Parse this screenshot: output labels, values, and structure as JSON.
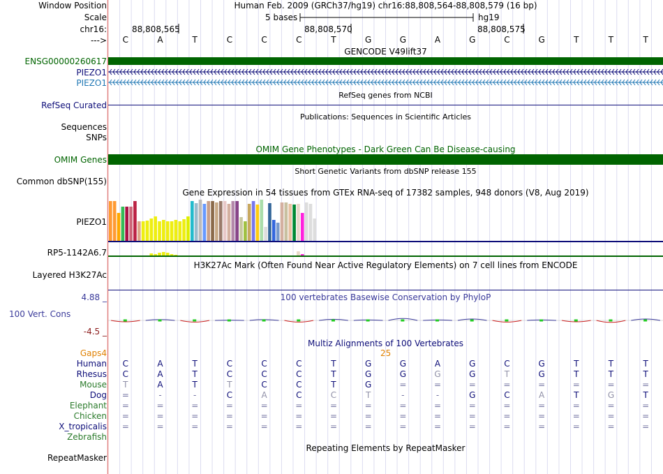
{
  "header": {
    "window_position_label": "Window Position",
    "assembly_text": "Human Feb. 2009 (GRCh37/hg19)   chr16:88,808,564-88,808,579 (16 bp)",
    "scale_label": "Scale",
    "scale_bases": "5 bases",
    "scale_db": "hg19",
    "chrom_label": "chr16:",
    "coord_ticks": [
      "88,808,565",
      "88,808,570",
      "88,808,575"
    ],
    "strand_label": "--->",
    "bases": [
      "C",
      "A",
      "T",
      "C",
      "C",
      "C",
      "T",
      "G",
      "G",
      "A",
      "G",
      "C",
      "G",
      "T",
      "T",
      "T"
    ]
  },
  "gencode": {
    "title": "GENCODE V49lift37",
    "genes": [
      {
        "name": "ENSG00000260617",
        "color": "#006400"
      },
      {
        "name": "PIEZO1",
        "color": "#0c0c78"
      },
      {
        "name": "PIEZO1",
        "color": "#1f77b4"
      }
    ]
  },
  "refseq": {
    "title": "RefSeq genes from NCBI",
    "label": "RefSeq Curated",
    "color": "#0c0c78"
  },
  "publications": {
    "title": "Publications: Sequences in Scientific Articles",
    "labels": [
      "Sequences",
      "SNPs"
    ]
  },
  "omim": {
    "title": "OMIM Gene Phenotypes - Dark Green Can Be Disease-causing",
    "label": "OMIM Genes",
    "color": "#006400"
  },
  "dbsnp": {
    "title": "Short Genetic Variants from dbSNP release 155",
    "label": "Common dbSNP(155)"
  },
  "gtex": {
    "title": "Gene Expression in 54 tissues from GTEx RNA-seq of 17382 samples, 948 donors (V8, Aug 2019)",
    "rows": [
      {
        "label": "PIEZO1",
        "bar_heights": [
          57,
          57,
          40,
          49,
          49,
          49,
          57,
          28,
          28,
          29,
          32,
          35,
          28,
          30,
          28,
          28,
          30,
          28,
          31,
          35,
          57,
          54,
          59,
          53,
          57,
          57,
          55,
          57,
          57,
          53,
          57,
          57,
          34,
          28,
          53,
          57,
          52,
          60,
          20,
          54,
          30,
          26,
          55,
          55,
          53,
          52,
          53,
          40,
          55,
          53,
          32
        ]
      },
      {
        "label": "RP5-1142A6.7",
        "bar_heights": [
          0,
          0,
          0,
          0,
          0,
          0,
          0,
          0,
          0,
          0,
          3,
          2,
          4,
          5,
          4,
          2,
          1,
          0,
          0,
          0,
          0,
          0,
          0,
          0,
          0,
          0,
          0,
          0,
          0,
          0,
          0,
          0,
          0,
          0,
          0,
          0,
          0,
          0,
          0,
          0,
          0,
          0,
          0,
          0,
          0,
          0,
          6,
          2,
          0,
          0,
          0
        ]
      }
    ],
    "colors": [
      "#ff9a33",
      "#ff9a33",
      "#ffa800",
      "#33bb55",
      "#aa1144",
      "#cc6677",
      "#bb2244",
      "#dda688",
      "#eeee11",
      "#eeee11",
      "#eeee11",
      "#eeee11",
      "#eeee11",
      "#eeee11",
      "#eeee11",
      "#eeee11",
      "#eeee11",
      "#eeee11",
      "#eeee11",
      "#ddee00",
      "#22bbcc",
      "#99bbcc",
      "#bbbbbb",
      "#6699ff",
      "#c8a08a",
      "#8a6a4a",
      "#c8aa88",
      "#9a7a6a",
      "#e8c8c8",
      "#d4b0a0",
      "#b488aa",
      "#884488",
      "#c8c8a0",
      "#a0c040",
      "#c8a860",
      "#7777ee",
      "#ffcc11",
      "#aaddaa",
      "#dddddd",
      "#336699",
      "#3366dd",
      "#7799cc",
      "#d4b0a0",
      "#c8c0a0",
      "#e8c0a0",
      "#008833",
      "#e8d8c8",
      "#ff22dd",
      "#dddddd",
      "#dddddd",
      "#dddddd"
    ]
  },
  "h3k27ac": {
    "title": "H3K27Ac Mark (Often Found Near Active Regulatory Elements) on 7 cell lines from ENCODE",
    "label": "Layered H3K27Ac"
  },
  "cons": {
    "title": "100 vertebrates Basewise Conservation by PhyloP",
    "label": "100 Vert. Cons",
    "ymax": "4.88 _",
    "ymin": "-4.5 _",
    "values": [
      -0.5,
      0.3,
      -0.6,
      0.1,
      0.3,
      -0.6,
      0.4,
      0.2,
      0.7,
      0.2,
      0.5,
      -0.6,
      0.2,
      -0.5,
      -0.7,
      0.5
    ]
  },
  "multiz": {
    "title": "Multiz Alignments of 100 Vertebrates",
    "gaps_label": "Gaps4",
    "gaps_count": "25",
    "species": [
      {
        "name": "Human",
        "color": "#0c0c78",
        "bases": [
          "C",
          "A",
          "T",
          "C",
          "C",
          "C",
          "T",
          "G",
          "G",
          "A",
          "G",
          "C",
          "G",
          "T",
          "T",
          "T"
        ]
      },
      {
        "name": "Rhesus",
        "color": "#0c0c78",
        "bases": [
          "C",
          "A",
          "T",
          "C",
          "C",
          "C",
          "T",
          "G",
          "G",
          "G",
          "G",
          "T",
          "G",
          "T",
          "T",
          "T"
        ]
      },
      {
        "name": "Mouse",
        "color": "#2a7a2a",
        "bases": [
          "T",
          "A",
          "T",
          "T",
          "C",
          "C",
          "T",
          "G",
          "=",
          "=",
          "=",
          "=",
          "=",
          "=",
          "=",
          "="
        ]
      },
      {
        "name": "Dog",
        "color": "#0c0c78",
        "bases": [
          "=",
          "-",
          "-",
          "C",
          "A",
          "C",
          "C",
          "T",
          "-",
          "-",
          "G",
          "C",
          "A",
          "T",
          "G",
          "T"
        ]
      },
      {
        "name": "Elephant",
        "color": "#2a7a2a",
        "bases": [
          "=",
          "=",
          "=",
          "=",
          "=",
          "=",
          "=",
          "=",
          "=",
          "=",
          "=",
          "=",
          "=",
          "=",
          "=",
          "="
        ]
      },
      {
        "name": "Chicken",
        "color": "#2a7a2a",
        "bases": [
          "=",
          "=",
          "=",
          "=",
          "=",
          "=",
          "=",
          "=",
          "=",
          "=",
          "=",
          "=",
          "=",
          "=",
          "=",
          "="
        ]
      },
      {
        "name": "X_tropicalis",
        "color": "#0c0c78",
        "bases": [
          "=",
          "=",
          "=",
          "=",
          "=",
          "=",
          "=",
          "=",
          "=",
          "=",
          "=",
          "=",
          "=",
          "=",
          "=",
          "="
        ]
      },
      {
        "name": "Zebrafish",
        "color": "#2a7a2a",
        "bases": []
      }
    ]
  },
  "repeatmasker": {
    "title": "Repeating Elements by RepeatMasker",
    "label": "RepeatMasker"
  }
}
